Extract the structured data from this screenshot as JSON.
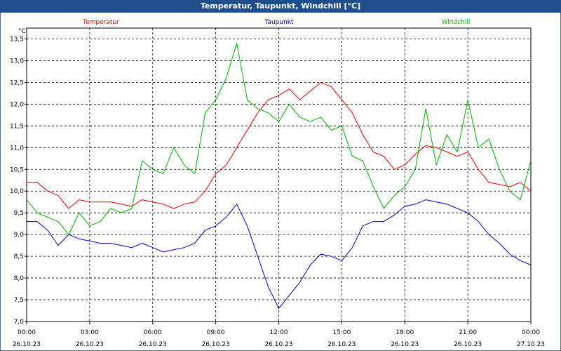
{
  "window": {
    "title": "Temperatur, Taupunkt, Windchill [°C]"
  },
  "colors": {
    "title_bar": "#1e4f8c",
    "temperatur": "#e00000",
    "taupunkt": "#0000c0",
    "windchill": "#00b000",
    "grid": "#000000"
  },
  "chart_data": {
    "type": "line",
    "title": "Temperatur, Taupunkt, Windchill [°C]",
    "ylabel": "°C",
    "xlabel": "",
    "ylim": [
      7.0,
      13.75
    ],
    "xlim": [
      0,
      24
    ],
    "grid": true,
    "legend_position": "top",
    "y_ticks": [
      "7,0",
      "7,5",
      "8,0",
      "8,5",
      "9,0",
      "9,5",
      "10,0",
      "10,5",
      "11,0",
      "11,5",
      "12,0",
      "12,5",
      "13,0",
      "13,5"
    ],
    "y_tick_values": [
      7.0,
      7.5,
      8.0,
      8.5,
      9.0,
      9.5,
      10.0,
      10.5,
      11.0,
      11.5,
      12.0,
      12.5,
      13.0,
      13.5
    ],
    "x_ticks": [
      {
        "time": "00:00",
        "date": "26.10.23"
      },
      {
        "time": "03:00",
        "date": "26.10.23"
      },
      {
        "time": "06:00",
        "date": "26.10.23"
      },
      {
        "time": "09:00",
        "date": "26.10.23"
      },
      {
        "time": "12:00",
        "date": "26.10.23"
      },
      {
        "time": "15:00",
        "date": "26.10.23"
      },
      {
        "time": "18:00",
        "date": "26.10.23"
      },
      {
        "time": "21:00",
        "date": "26.10.23"
      },
      {
        "time": "00:00",
        "date": "27.10.23"
      }
    ],
    "x_tick_values": [
      0,
      3,
      6,
      9,
      12,
      15,
      18,
      21,
      24
    ],
    "series": [
      {
        "name": "Temperatur",
        "x": [
          0,
          0.5,
          1,
          1.5,
          2,
          2.5,
          3,
          3.5,
          4,
          4.5,
          5,
          5.5,
          6,
          6.5,
          7,
          7.5,
          8,
          8.5,
          9,
          9.5,
          10,
          10.5,
          11,
          11.5,
          12,
          12.5,
          13,
          13.5,
          14,
          14.5,
          15,
          15.5,
          16,
          16.5,
          17,
          17.5,
          18,
          18.5,
          19,
          19.5,
          20,
          20.5,
          21,
          21.5,
          22,
          22.5,
          23,
          23.5,
          24
        ],
        "values": [
          10.2,
          10.2,
          10.0,
          9.9,
          9.6,
          9.8,
          9.75,
          9.75,
          9.75,
          9.7,
          9.65,
          9.8,
          9.75,
          9.7,
          9.6,
          9.7,
          9.75,
          10.0,
          10.4,
          10.6,
          11.0,
          11.4,
          11.8,
          12.1,
          12.2,
          12.35,
          12.1,
          12.3,
          12.5,
          12.4,
          12.1,
          11.8,
          11.3,
          10.9,
          10.8,
          10.5,
          10.6,
          10.85,
          11.05,
          11.0,
          10.9,
          10.8,
          10.9,
          10.5,
          10.2,
          10.15,
          10.1,
          10.2,
          10.0
        ]
      },
      {
        "name": "Taupunkt",
        "x": [
          0,
          0.5,
          1,
          1.5,
          2,
          2.5,
          3,
          3.5,
          4,
          4.5,
          5,
          5.5,
          6,
          6.5,
          7,
          7.5,
          8,
          8.5,
          9,
          9.5,
          10,
          10.5,
          11,
          11.5,
          12,
          12.5,
          13,
          13.5,
          14,
          14.5,
          15,
          15.5,
          16,
          16.5,
          17,
          17.5,
          18,
          18.5,
          19,
          19.5,
          20,
          20.5,
          21,
          21.5,
          22,
          22.5,
          23,
          23.5,
          24
        ],
        "values": [
          9.3,
          9.3,
          9.1,
          8.75,
          9.0,
          8.9,
          8.85,
          8.8,
          8.8,
          8.75,
          8.7,
          8.8,
          8.7,
          8.6,
          8.65,
          8.7,
          8.8,
          9.1,
          9.2,
          9.4,
          9.7,
          9.2,
          8.5,
          7.8,
          7.3,
          7.6,
          7.9,
          8.3,
          8.55,
          8.5,
          8.4,
          8.7,
          9.2,
          9.3,
          9.3,
          9.45,
          9.65,
          9.7,
          9.8,
          9.75,
          9.7,
          9.6,
          9.5,
          9.3,
          9.0,
          8.8,
          8.55,
          8.4,
          8.3
        ]
      },
      {
        "name": "Windchill",
        "x": [
          0,
          0.5,
          1,
          1.5,
          2,
          2.5,
          3,
          3.5,
          4,
          4.5,
          5,
          5.5,
          6,
          6.5,
          7,
          7.5,
          8,
          8.5,
          9,
          9.5,
          10,
          10.5,
          11,
          11.5,
          12,
          12.5,
          13,
          13.5,
          14,
          14.5,
          15,
          15.5,
          16,
          16.5,
          17,
          17.5,
          18,
          18.5,
          19,
          19.5,
          20,
          20.5,
          21,
          21.5,
          22,
          22.5,
          23,
          23.5,
          24
        ],
        "values": [
          9.8,
          9.5,
          9.4,
          9.3,
          9.0,
          9.5,
          9.2,
          9.3,
          9.6,
          9.5,
          9.6,
          10.7,
          10.5,
          10.4,
          11.0,
          10.6,
          10.4,
          11.8,
          12.1,
          12.6,
          13.4,
          12.1,
          11.9,
          11.8,
          11.6,
          12.0,
          11.7,
          11.6,
          11.7,
          11.4,
          11.5,
          10.8,
          10.7,
          10.1,
          9.6,
          9.9,
          10.1,
          10.5,
          11.9,
          10.6,
          11.3,
          10.9,
          12.1,
          11.0,
          11.2,
          10.5,
          10.0,
          9.8,
          10.7
        ]
      }
    ]
  }
}
